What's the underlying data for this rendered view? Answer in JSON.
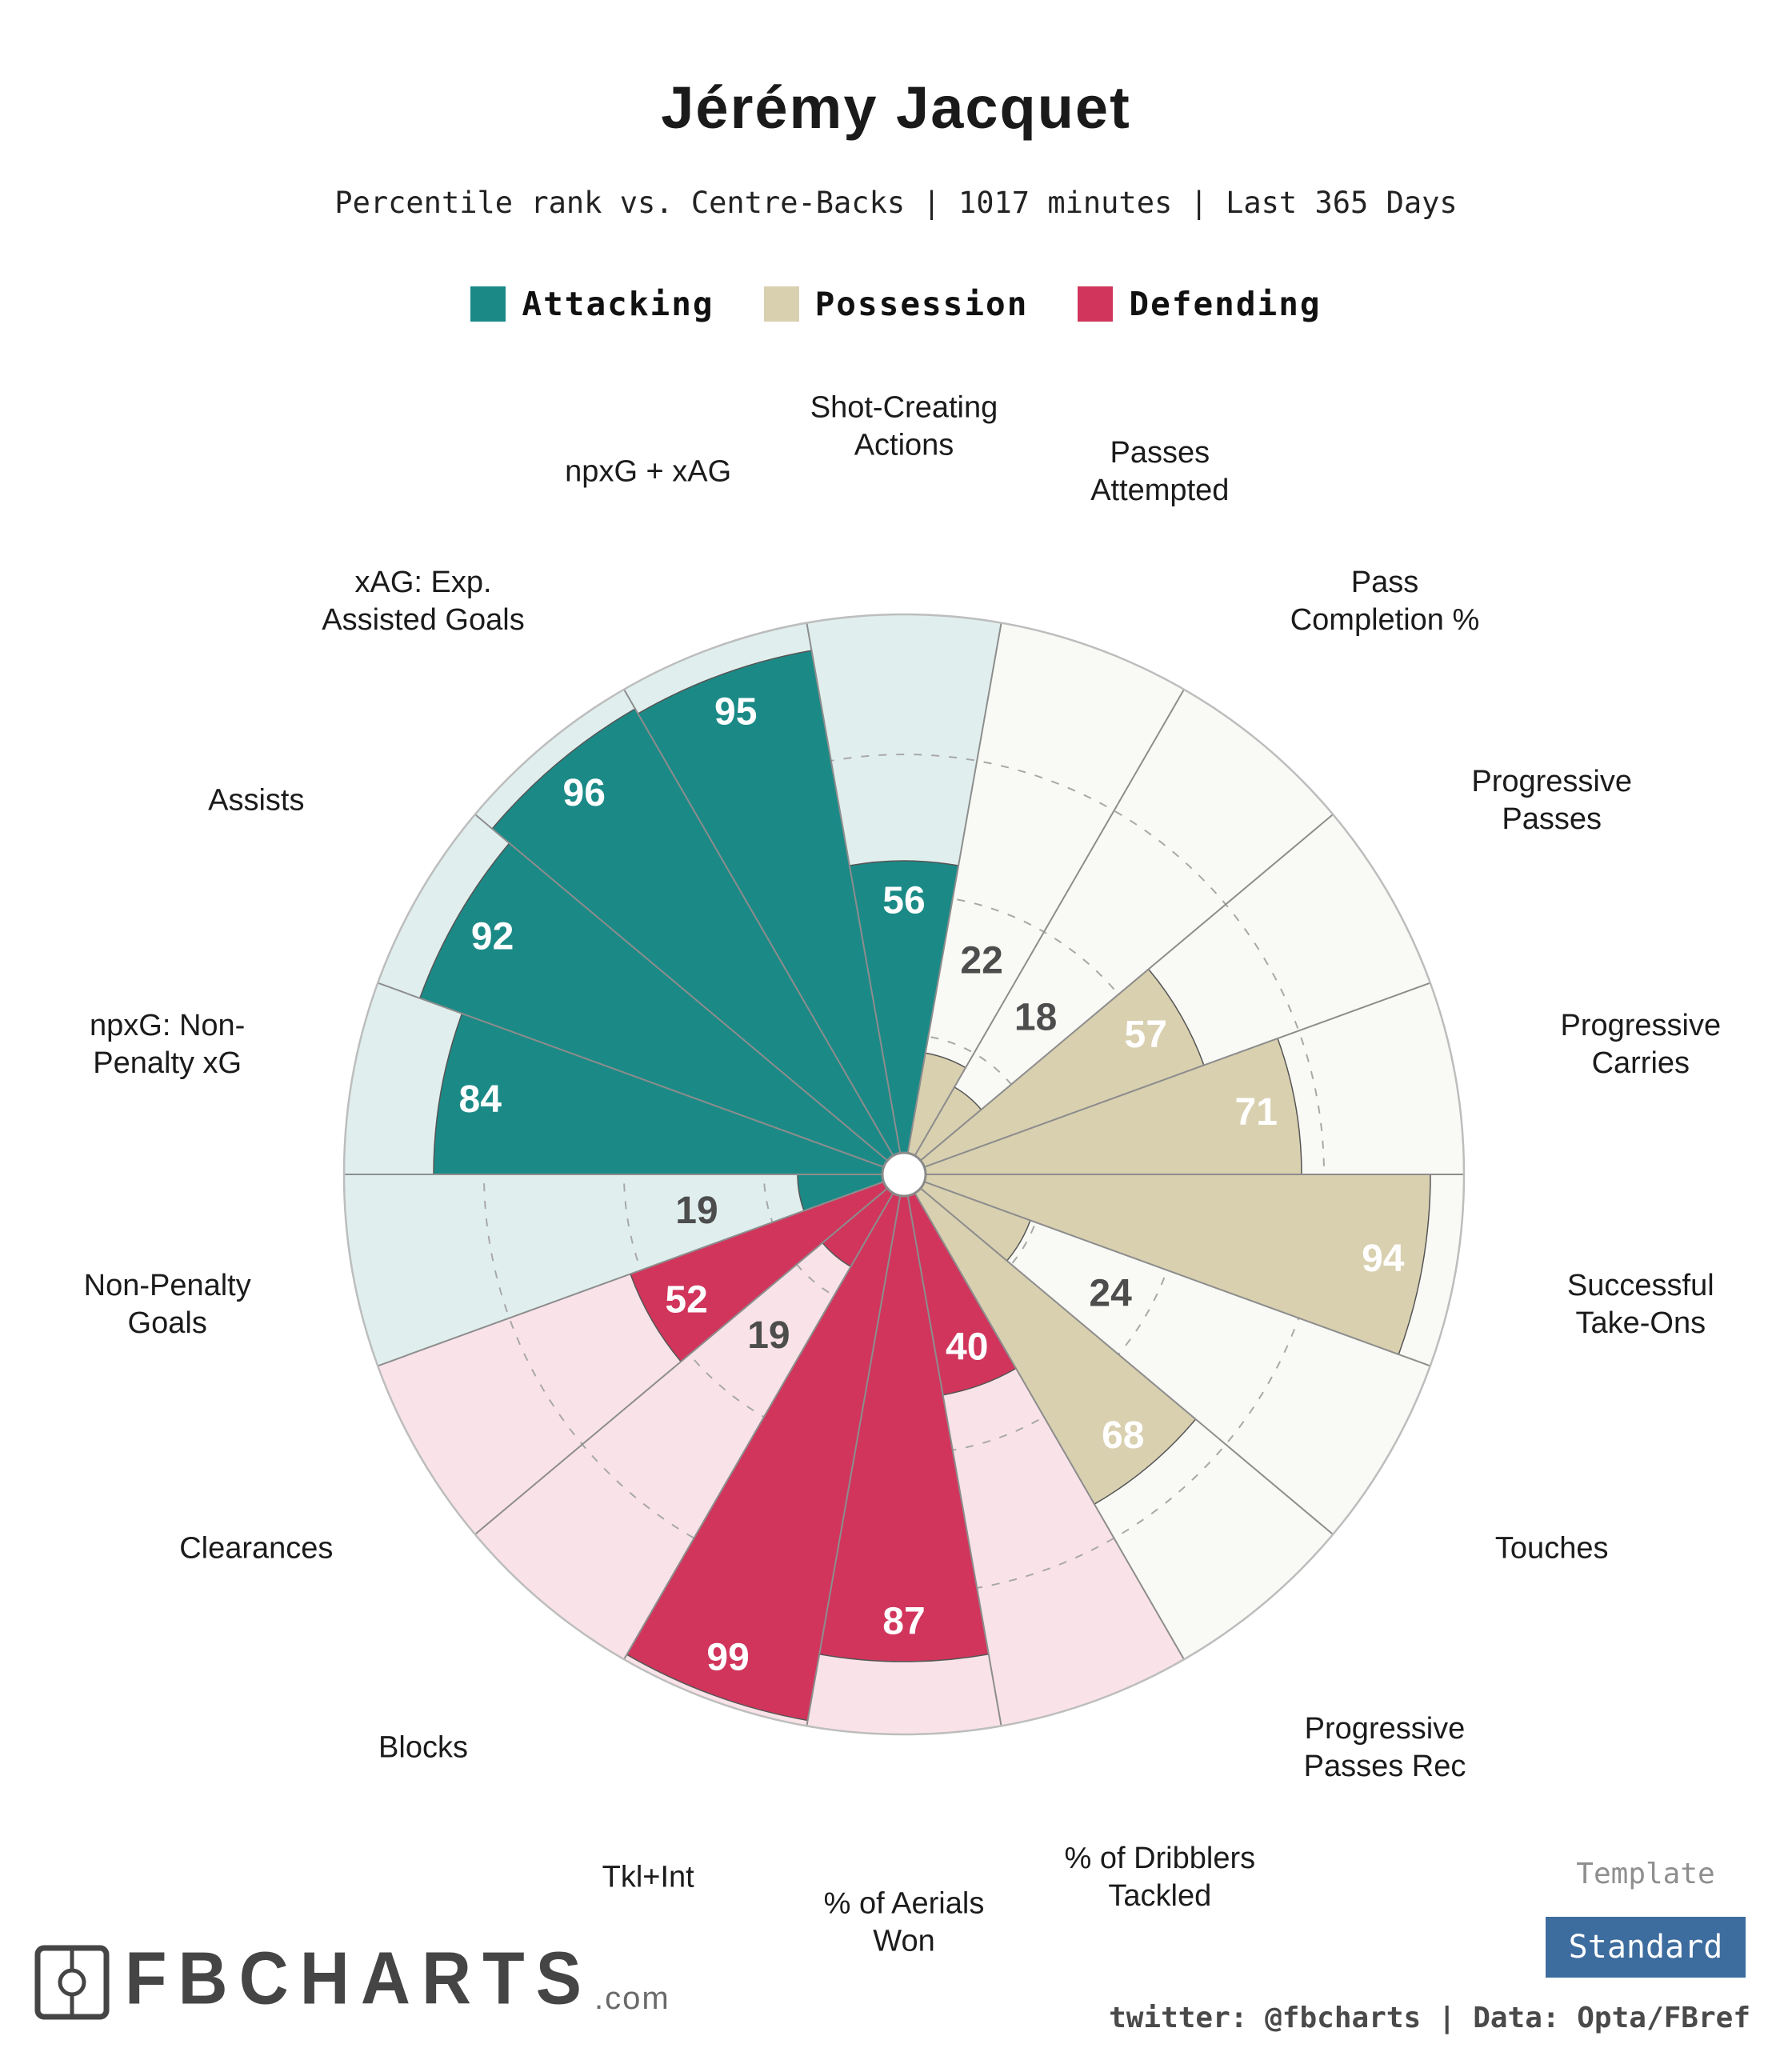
{
  "header": {
    "title": "Jérémy Jacquet",
    "subtitle": "Percentile rank vs. Centre-Backs | 1017 minutes | Last 365 Days"
  },
  "legend": {
    "items": [
      {
        "label": "Attacking",
        "color": "#1b8a87"
      },
      {
        "label": "Possession",
        "color": "#d9d0b0"
      },
      {
        "label": "Defending",
        "color": "#d1355c"
      }
    ]
  },
  "chart_data": {
    "type": "pie",
    "variant": "pizza-percentile",
    "title": "Jérémy Jacquet",
    "subtitle": "Percentile rank vs. Centre-Backs | 1017 minutes | Last 365 Days",
    "value_range": [
      0,
      100
    ],
    "gridlines": [
      25,
      50,
      75
    ],
    "start_angle_deg": -100,
    "slice_angle_deg": 20,
    "categories": {
      "attacking": {
        "name": "Attacking",
        "fill": "#1b8a87",
        "bg": "#e0efee"
      },
      "possession": {
        "name": "Possession",
        "fill": "#d9d0b0",
        "bg": "#f9f9f5"
      },
      "defending": {
        "name": "Defending",
        "fill": "#d1355c",
        "bg": "#fae3e8"
      }
    },
    "params": [
      {
        "label": [
          "Shot-Creating",
          "Actions"
        ],
        "value": 56,
        "category": "attacking"
      },
      {
        "label": [
          "Passes",
          "Attempted"
        ],
        "value": 22,
        "category": "possession"
      },
      {
        "label": [
          "Pass",
          "Completion %"
        ],
        "value": 18,
        "category": "possession"
      },
      {
        "label": [
          "Progressive",
          "Passes"
        ],
        "value": 57,
        "category": "possession"
      },
      {
        "label": [
          "Progressive",
          "Carries"
        ],
        "value": 71,
        "category": "possession"
      },
      {
        "label": [
          "Successful",
          "Take-Ons"
        ],
        "value": 94,
        "category": "possession"
      },
      {
        "label": [
          "Touches"
        ],
        "value": 24,
        "category": "possession"
      },
      {
        "label": [
          "Progressive",
          "Passes Rec"
        ],
        "value": 68,
        "category": "possession"
      },
      {
        "label": [
          "% of Dribblers",
          "Tackled"
        ],
        "value": 40,
        "category": "defending"
      },
      {
        "label": [
          "% of Aerials",
          "Won"
        ],
        "value": 87,
        "category": "defending"
      },
      {
        "label": [
          "Tkl+Int"
        ],
        "value": 99,
        "category": "defending"
      },
      {
        "label": [
          "Blocks"
        ],
        "value": 19,
        "category": "defending"
      },
      {
        "label": [
          "Clearances"
        ],
        "value": 52,
        "category": "defending"
      },
      {
        "label": [
          "Non-Penalty",
          "Goals"
        ],
        "value": 19,
        "category": "attacking"
      },
      {
        "label": [
          "npxG: Non-",
          "Penalty xG"
        ],
        "value": 84,
        "category": "attacking"
      },
      {
        "label": [
          "Assists"
        ],
        "value": 92,
        "category": "attacking"
      },
      {
        "label": [
          "xAG: Exp.",
          "Assisted Goals"
        ],
        "value": 96,
        "category": "attacking"
      },
      {
        "label": [
          "npxG + xAG"
        ],
        "value": 95,
        "category": "attacking"
      }
    ]
  },
  "footer": {
    "brand": "FBCHARTS",
    "brand_suffix": ".com",
    "template_label": "Template",
    "template_value": "Standard",
    "template_color": "#3d6c9e",
    "credit": "twitter: @fbcharts | Data: Opta/FBref"
  }
}
